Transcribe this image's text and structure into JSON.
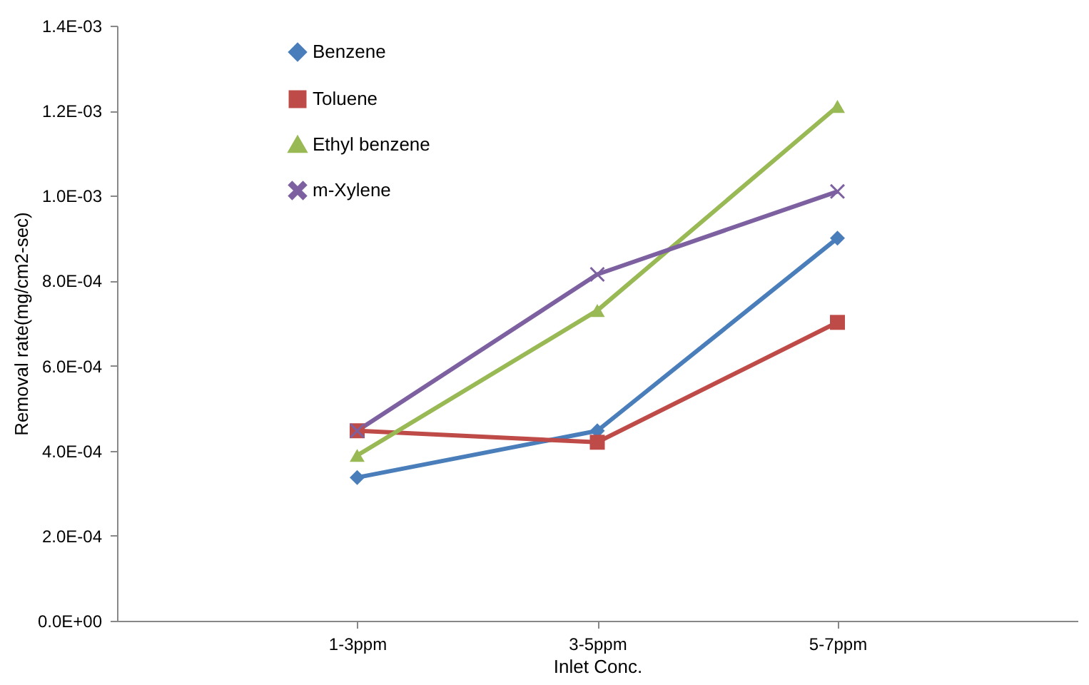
{
  "chart_data": {
    "type": "line",
    "xlabel": "Inlet Conc.",
    "ylabel": "Removal rate(mg/cm2-sec)",
    "categories": [
      "1-3ppm",
      "3-5ppm",
      "5-7ppm"
    ],
    "series": [
      {
        "name": "Benzene",
        "color": "#4a7ebb",
        "marker": "diamond",
        "values": [
          0.000337,
          0.000447,
          0.0009
        ]
      },
      {
        "name": "Toluene",
        "color": "#be4b48",
        "marker": "square",
        "values": [
          0.000447,
          0.00042,
          0.000702
        ]
      },
      {
        "name": "Ethyl benzene",
        "color": "#98b954",
        "marker": "triangle",
        "values": [
          0.000389,
          0.00073,
          0.00121
        ]
      },
      {
        "name": "m-Xylene",
        "color": "#7d60a0",
        "marker": "cross",
        "values": [
          0.000447,
          0.000815,
          0.00101
        ]
      }
    ],
    "ylim": [
      0,
      0.0014
    ],
    "yticks": [
      {
        "value": 0,
        "label": "0.0E+00"
      },
      {
        "value": 0.0002,
        "label": "2.0E-04"
      },
      {
        "value": 0.0004,
        "label": "4.0E-04"
      },
      {
        "value": 0.0006,
        "label": "6.0E-04"
      },
      {
        "value": 0.0008,
        "label": "8.0E-04"
      },
      {
        "value": 0.001,
        "label": "1.0E-03"
      },
      {
        "value": 0.0012,
        "label": "1.2E-03"
      },
      {
        "value": 0.0014,
        "label": "1.4E-03"
      }
    ],
    "grid": false,
    "legend": "top left",
    "line_style": "solid"
  }
}
